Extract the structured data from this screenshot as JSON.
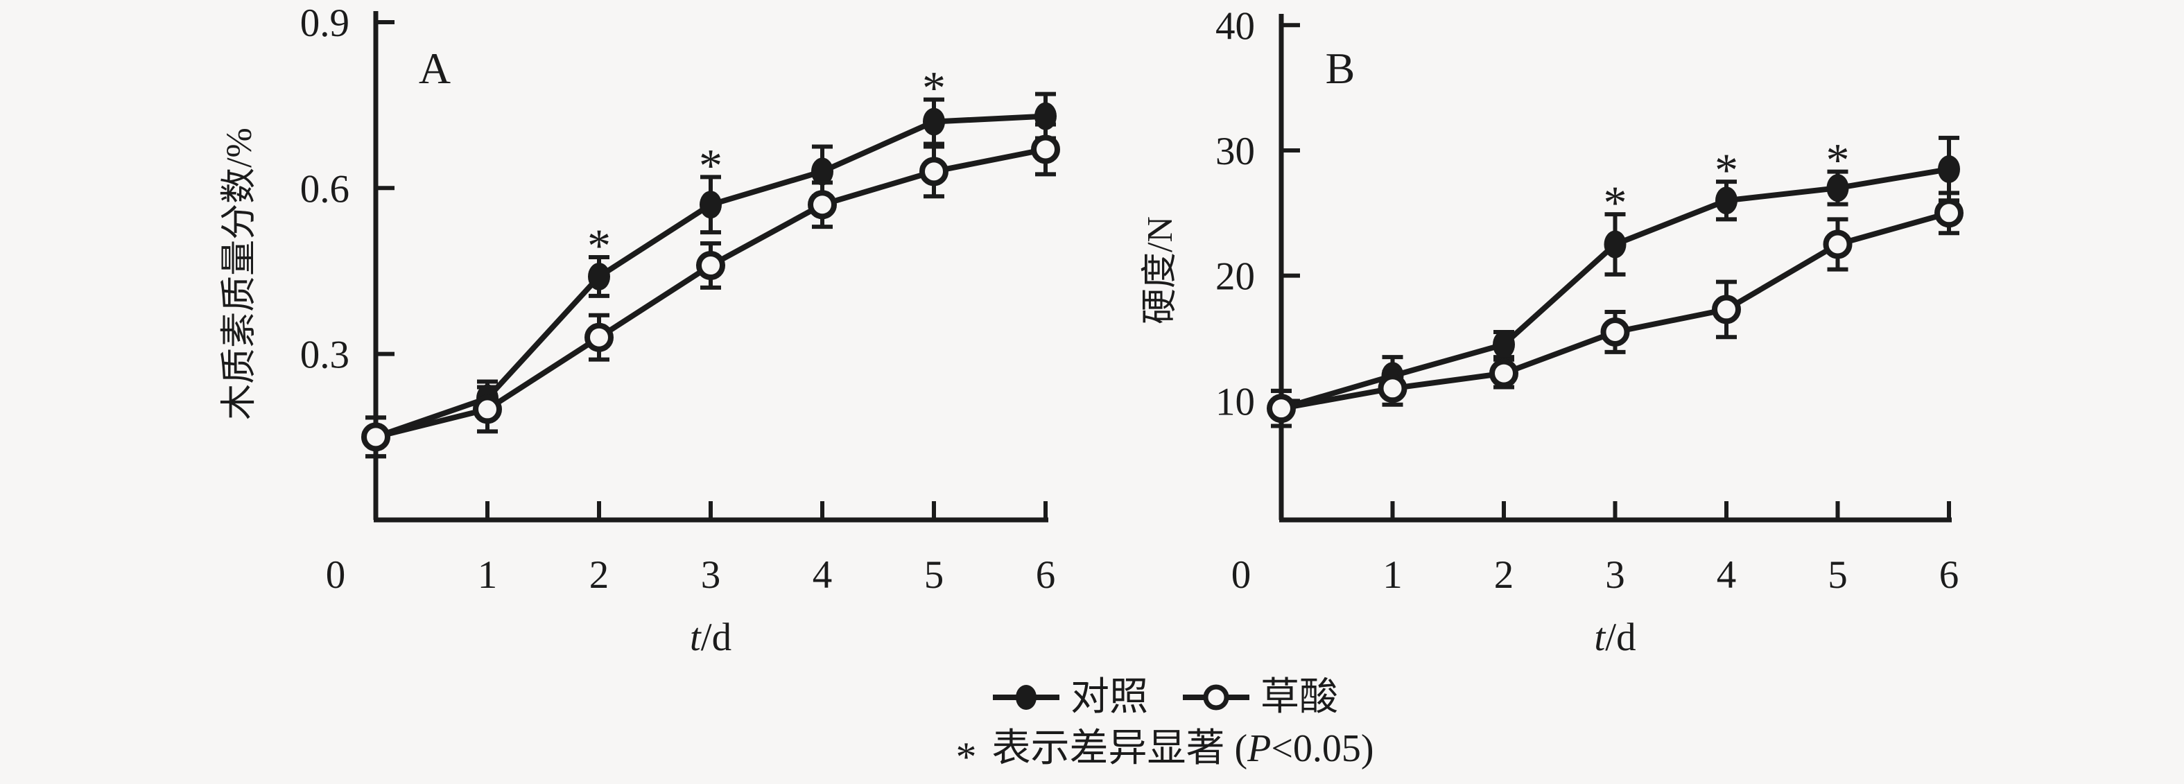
{
  "figure": {
    "background": "#f7f6f5",
    "ink": "#1b1b1b"
  },
  "legend": {
    "items": [
      {
        "label": "对照",
        "marker": "filled-circle"
      },
      {
        "label": "草酸",
        "marker": "open-circle"
      }
    ],
    "note": {
      "symbol": "*",
      "parts": [
        {
          "text": "表示差异显著 (",
          "italic": false
        },
        {
          "text": "P",
          "italic": true
        },
        {
          "text": "<0.05)",
          "italic": false
        }
      ]
    }
  },
  "chart_data": [
    {
      "type": "line",
      "panel_label": "A",
      "xlabel": "t/d",
      "xlabel_parts": [
        {
          "text": "t",
          "italic": true
        },
        {
          "text": "/d",
          "italic": false
        }
      ],
      "ylabel": "木质素质量分数/%",
      "x": [
        0,
        1,
        2,
        3,
        4,
        5,
        6
      ],
      "x_ticks": [
        0,
        1,
        2,
        3,
        4,
        5,
        6
      ],
      "y_ticks": [
        {
          "value": 0.3,
          "label": "0.3"
        },
        {
          "value": 0.6,
          "label": "0.6"
        },
        {
          "value": 0.9,
          "label": "0.9"
        }
      ],
      "ylim": [
        0,
        0.92
      ],
      "grid": false,
      "series": [
        {
          "name": "对照",
          "marker": "filled-circle",
          "values": [
            0.15,
            0.22,
            0.44,
            0.57,
            0.63,
            0.72,
            0.73
          ],
          "errors": [
            0.035,
            0.03,
            0.035,
            0.05,
            0.045,
            0.04,
            0.04
          ]
        },
        {
          "name": "草酸",
          "marker": "open-circle",
          "values": [
            0.15,
            0.2,
            0.33,
            0.46,
            0.57,
            0.63,
            0.67
          ],
          "errors": [
            0.035,
            0.04,
            0.04,
            0.04,
            0.04,
            0.045,
            0.045
          ]
        }
      ],
      "significance": {
        "symbol": "*",
        "series": "对照",
        "x": [
          2,
          3,
          5
        ]
      }
    },
    {
      "type": "line",
      "panel_label": "B",
      "xlabel": "t/d",
      "xlabel_parts": [
        {
          "text": "t",
          "italic": true
        },
        {
          "text": "/d",
          "italic": false
        }
      ],
      "ylabel": "硬度/N",
      "x": [
        0,
        1,
        2,
        3,
        4,
        5,
        6
      ],
      "x_ticks": [
        0,
        1,
        2,
        3,
        4,
        5,
        6
      ],
      "y_ticks": [
        {
          "value": 10,
          "label": "10"
        },
        {
          "value": 20,
          "label": "20"
        },
        {
          "value": 30,
          "label": "30"
        },
        {
          "value": 40,
          "label": "40"
        }
      ],
      "ylim": [
        0.5,
        40.9
      ],
      "grid": false,
      "series": [
        {
          "name": "对照",
          "marker": "filled-circle",
          "values": [
            9.4,
            12,
            14.5,
            22.5,
            26,
            27,
            28.5
          ],
          "errors": [
            1.4,
            1.5,
            1.0,
            2.4,
            1.5,
            1.3,
            2.5
          ]
        },
        {
          "name": "草酸",
          "marker": "open-circle",
          "values": [
            9.4,
            11,
            12.2,
            15.5,
            17.3,
            22.5,
            25
          ],
          "errors": [
            1.4,
            1.3,
            1.1,
            1.6,
            2.2,
            2.0,
            1.6
          ]
        }
      ],
      "significance": {
        "symbol": "*",
        "series": "对照",
        "x": [
          3,
          4,
          5
        ]
      }
    }
  ]
}
